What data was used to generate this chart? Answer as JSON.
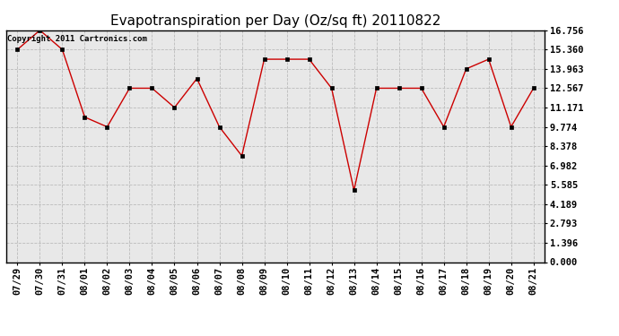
{
  "title": "Evapotranspiration per Day (Oz/sq ft) 20110822",
  "copyright": "Copyright 2011 Cartronics.com",
  "x_labels": [
    "07/29",
    "07/30",
    "07/31",
    "08/01",
    "08/02",
    "08/03",
    "08/04",
    "08/05",
    "08/06",
    "08/07",
    "08/08",
    "08/09",
    "08/10",
    "08/11",
    "08/12",
    "08/13",
    "08/14",
    "08/15",
    "08/16",
    "08/17",
    "08/18",
    "08/19",
    "08/20",
    "08/21"
  ],
  "y_values": [
    15.36,
    16.756,
    15.36,
    10.478,
    9.774,
    12.567,
    12.567,
    11.171,
    13.265,
    9.774,
    7.68,
    14.662,
    14.662,
    14.662,
    12.567,
    5.19,
    12.567,
    12.567,
    12.567,
    9.774,
    13.963,
    14.662,
    9.774,
    12.567
  ],
  "line_color": "#cc0000",
  "marker": "s",
  "marker_size": 2.5,
  "grid_color": "#bbbbbb",
  "bg_color": "#ffffff",
  "plot_bg_color": "#e8e8e8",
  "y_ticks": [
    0.0,
    1.396,
    2.793,
    4.189,
    5.585,
    6.982,
    8.378,
    9.774,
    11.171,
    12.567,
    13.963,
    15.36,
    16.756
  ],
  "ylim": [
    0.0,
    16.756
  ],
  "title_fontsize": 11,
  "copyright_fontsize": 6.5,
  "tick_fontsize": 7.5,
  "figwidth": 6.9,
  "figheight": 3.75,
  "dpi": 100
}
